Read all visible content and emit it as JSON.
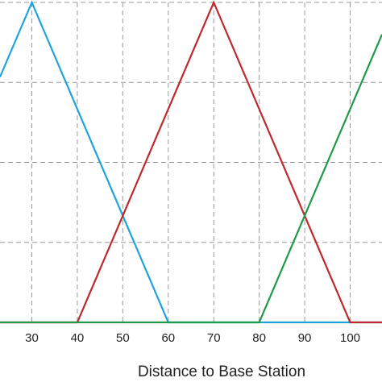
{
  "chart_data": {
    "type": "line",
    "x_label": "Distance to Base Station",
    "xlim": [
      23,
      107
    ],
    "xticks": [
      30,
      40,
      50,
      60,
      70,
      80,
      90,
      100
    ],
    "ylim": [
      0,
      1
    ],
    "yticks": [
      0,
      0.25,
      0.5,
      0.75,
      1
    ],
    "grid": true,
    "series": [
      {
        "color": "#1fa3dc",
        "x": [
          23,
          30,
          60,
          107
        ],
        "values": [
          0.767,
          1,
          0,
          0
        ]
      },
      {
        "color": "#c0282d",
        "x": [
          23,
          40,
          70,
          100,
          107
        ],
        "values": [
          0,
          0,
          1,
          0,
          0
        ]
      },
      {
        "color": "#1f9a4a",
        "x": [
          23,
          80,
          107
        ],
        "values": [
          0,
          0,
          0.9
        ]
      }
    ]
  }
}
